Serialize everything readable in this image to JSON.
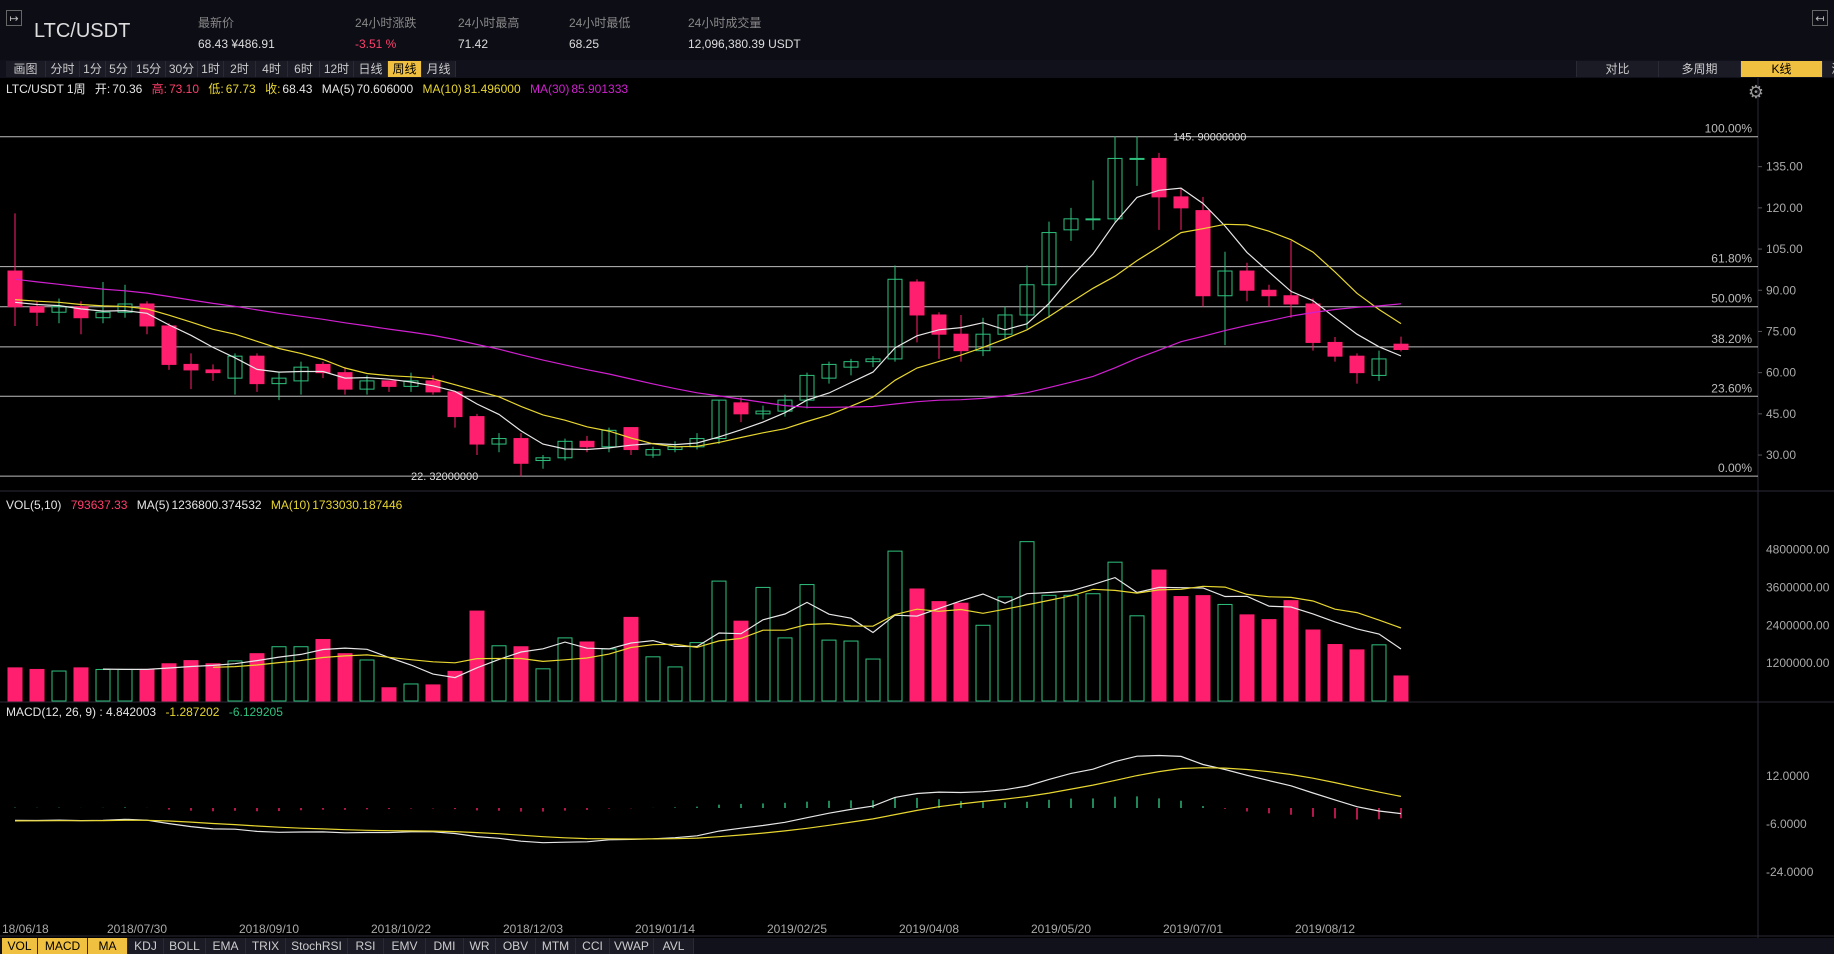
{
  "header": {
    "pair": "LTC/USDT",
    "stats": [
      {
        "label": "最新价",
        "value": "68.43 ¥486.91"
      },
      {
        "label": "24小时涨跌",
        "value": "-3.51 %"
      },
      {
        "label": "24小时最高",
        "value": "71.42"
      },
      {
        "label": "24小时最低",
        "value": "68.25"
      },
      {
        "label": "24小时成交量",
        "value": "12,096,380.39 USDT"
      }
    ],
    "toggle_left": "↦",
    "toggle_right": "↤"
  },
  "toolbar": {
    "timeframes": [
      "画图",
      "分时",
      "1分",
      "5分",
      "15分",
      "30分",
      "1时",
      "2时",
      "4时",
      "6时",
      "12时",
      "日线",
      "周线",
      "月线"
    ],
    "active_timeframe": "周线",
    "views": [
      "对比",
      "多周期",
      "K线",
      "深度图"
    ],
    "active_view": "K线"
  },
  "info_line": {
    "pair_period": "LTC/USDT 1周",
    "open_label": "开:",
    "open": "70.36",
    "high_label": "高:",
    "high": "73.10",
    "low_label": "低:",
    "low": "67.73",
    "close_label": "收:",
    "close": "68.43",
    "ma5_label": "MA(5)",
    "ma5": "70.606000",
    "ma10_label": "MA(10)",
    "ma10": "81.496000",
    "ma30_label": "MA(30)",
    "ma30": "85.901333"
  },
  "vol_line": {
    "label": "VOL(5,10)",
    "value": "793637.33",
    "ma5_label": "MA(5)",
    "ma5": "1236800.374532",
    "ma10_label": "MA(10)",
    "ma10": "1733030.187446"
  },
  "macd_line": {
    "label": "MACD(12, 26, 9) : 4.842003",
    "dea": "-1.287202",
    "hist": "-6.129205"
  },
  "colors": {
    "up": "#2ec27e",
    "down": "#ff1f6e",
    "ma5": "#e6e6e6",
    "ma10": "#e8d630",
    "ma30": "#d020d0"
  },
  "price_axis": [
    "135.00",
    "120.00",
    "105.00",
    "90.00",
    "75.00",
    "60.00",
    "45.00",
    "30.00"
  ],
  "fib_levels": [
    {
      "label": "100.00%",
      "price": 145.9
    },
    {
      "label": "61.80%",
      "price": 98.6
    },
    {
      "label": "50.00%",
      "price": 84.0
    },
    {
      "label": "38.20%",
      "price": 69.4
    },
    {
      "label": "23.60%",
      "price": 51.4
    },
    {
      "label": "0.00%",
      "price": 22.32
    }
  ],
  "max_marker": "145. 90000000",
  "min_marker": "22. 32000000",
  "vol_axis": [
    "4800000.00",
    "3600000.00",
    "2400000.00",
    "1200000.00"
  ],
  "macd_axis": [
    "12.0000",
    "-6.0000",
    "-24.0000"
  ],
  "date_axis": [
    "18/06/18",
    "2018/07/30",
    "2018/09/10",
    "2018/10/22",
    "2018/12/03",
    "2019/01/14",
    "2019/02/25",
    "2019/04/08",
    "2019/05/20",
    "2019/07/01",
    "2019/08/12"
  ],
  "chart_data": {
    "type": "candlestick",
    "period": "1周",
    "price_range": [
      18,
      160
    ],
    "candles": [
      [
        97,
        84,
        118,
        77
      ],
      [
        84,
        82,
        86,
        77
      ],
      [
        82,
        84,
        87,
        78
      ],
      [
        84,
        80,
        86,
        74
      ],
      [
        80,
        82,
        93,
        78
      ],
      [
        82,
        85,
        92,
        80
      ],
      [
        85,
        77,
        86,
        74
      ],
      [
        77,
        63,
        78,
        61
      ],
      [
        63,
        61,
        67,
        54
      ],
      [
        61,
        60,
        63,
        57
      ],
      [
        58,
        66,
        67,
        52
      ],
      [
        66,
        56,
        67,
        53
      ],
      [
        56,
        58,
        60,
        50
      ],
      [
        57,
        62,
        64,
        52
      ],
      [
        63,
        60,
        64,
        58
      ],
      [
        60,
        54,
        62,
        52
      ],
      [
        54,
        57,
        59,
        52
      ],
      [
        57,
        55,
        57,
        53
      ],
      [
        55,
        57,
        60,
        53
      ],
      [
        57,
        53,
        59,
        52
      ],
      [
        53,
        44,
        53,
        40
      ],
      [
        44,
        34,
        45,
        30
      ],
      [
        34,
        36,
        38,
        31
      ],
      [
        36,
        27,
        38,
        22.3
      ],
      [
        28,
        29,
        30,
        25
      ],
      [
        29,
        35,
        36,
        28
      ],
      [
        35,
        33,
        37,
        31
      ],
      [
        33,
        39,
        40,
        31
      ],
      [
        40,
        32,
        40,
        30
      ],
      [
        30,
        32,
        33,
        29
      ],
      [
        32,
        33,
        35,
        31
      ],
      [
        33,
        36,
        38,
        32
      ],
      [
        36,
        50,
        50,
        34
      ],
      [
        49,
        45,
        51,
        42
      ],
      [
        45,
        46,
        48,
        43
      ],
      [
        46,
        50,
        52,
        44
      ],
      [
        50,
        59,
        60,
        47
      ],
      [
        58,
        63,
        64,
        56
      ],
      [
        62,
        64,
        65,
        59
      ],
      [
        64,
        65,
        66,
        62
      ],
      [
        65,
        94,
        99,
        64
      ],
      [
        93,
        81,
        94,
        71
      ],
      [
        81,
        74,
        82,
        65
      ],
      [
        74,
        68,
        81,
        64
      ],
      [
        68,
        74,
        80,
        66
      ],
      [
        74,
        81,
        84,
        72
      ],
      [
        81,
        92,
        99,
        76
      ],
      [
        92,
        111,
        115,
        80
      ],
      [
        112,
        116,
        120,
        108
      ],
      [
        116,
        116,
        130,
        112
      ],
      [
        116,
        138,
        146,
        115
      ],
      [
        138,
        138,
        146,
        128
      ],
      [
        138,
        124,
        140,
        112
      ],
      [
        124,
        120,
        127,
        112
      ],
      [
        119,
        88,
        124,
        84
      ],
      [
        88,
        97,
        104,
        70
      ],
      [
        97,
        90,
        100,
        86
      ],
      [
        90,
        88,
        92,
        84
      ],
      [
        88,
        85,
        108,
        80
      ],
      [
        85,
        71,
        87,
        68
      ],
      [
        71,
        66,
        73,
        64
      ],
      [
        66,
        60,
        67,
        56
      ],
      [
        59,
        65,
        68,
        57
      ],
      [
        70.36,
        68.43,
        73.1,
        67.73
      ]
    ],
    "volume": [
      1050000,
      1000000,
      950000,
      1050000,
      1000000,
      1000000,
      1000000,
      1180000,
      1280000,
      1180000,
      1270000,
      1500000,
      1720000,
      1720000,
      1950000,
      1500000,
      1300000,
      420000,
      540000,
      510000,
      940000,
      2850000,
      1750000,
      1720000,
      1020000,
      2000000,
      1870000,
      1650000,
      2650000,
      1400000,
      1080000,
      1850000,
      3800000,
      2530000,
      3600000,
      2000000,
      3690000,
      1930000,
      1900000,
      1330000,
      4750000,
      3550000,
      3150000,
      3100000,
      2400000,
      3300000,
      5050000,
      3350000,
      3350000,
      3400000,
      4400000,
      2700000,
      4150000,
      3310000,
      3340000,
      3060000,
      2730000,
      2580000,
      3180000,
      2250000,
      1790000,
      1620000,
      1780000,
      793637
    ]
  }
}
